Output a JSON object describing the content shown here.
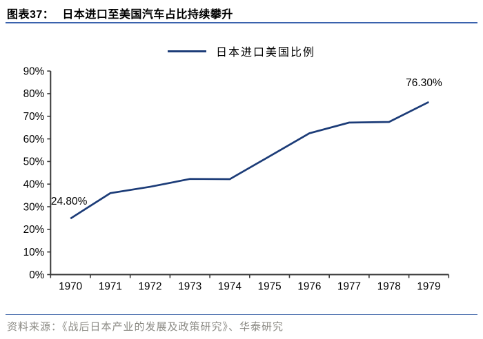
{
  "header": {
    "figure_label": "图表37：",
    "title": "日本进口至美国汽车占比持续攀升"
  },
  "legend": {
    "label": "日本进口美国比例"
  },
  "chart_data": {
    "type": "line",
    "title": "日本进口至美国汽车占比持续攀升",
    "categories": [
      "1970",
      "1971",
      "1972",
      "1973",
      "1974",
      "1975",
      "1976",
      "1977",
      "1978",
      "1979"
    ],
    "series": [
      {
        "name": "日本进口美国比例",
        "values": [
          24.8,
          36.0,
          38.8,
          42.3,
          42.2,
          52.3,
          62.5,
          67.2,
          67.5,
          76.3
        ]
      }
    ],
    "ylim": [
      0,
      90
    ],
    "ytick_step": 10,
    "ytick_labels": [
      "0%",
      "10%",
      "20%",
      "30%",
      "40%",
      "50%",
      "60%",
      "70%",
      "80%",
      "90%"
    ],
    "xlabel": "",
    "ylabel": "",
    "grid": false,
    "legend_position": "top",
    "annotations": [
      {
        "category": "1970",
        "text": "24.80%"
      },
      {
        "category": "1979",
        "text": "76.30%"
      }
    ],
    "line_color": "#1c3c78",
    "axis_color": "#3a3a3a",
    "tick_label_color": "#000000"
  },
  "footer": {
    "source": "资料来源：《战后日本产业的发展及政策研究》、华泰研究"
  },
  "colors": {
    "title_rule": "#3a62ad",
    "footer_rule": "#5577b3",
    "footer_text": "#8b8a84"
  }
}
